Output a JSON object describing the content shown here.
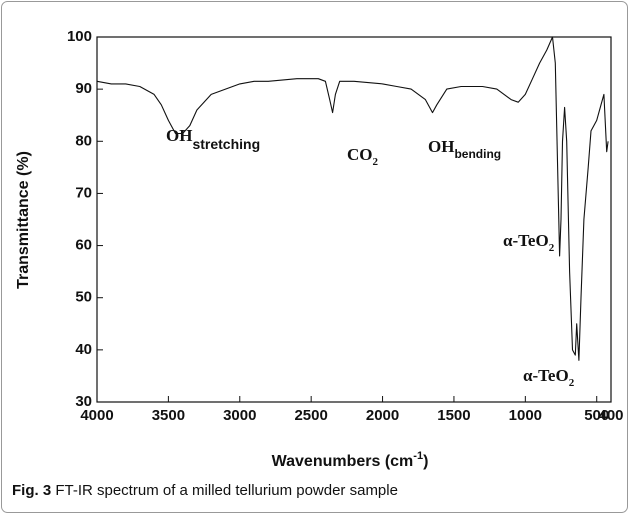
{
  "chart_data": {
    "type": "line",
    "xlabel": [
      "Wavenumbers (cm",
      "-1",
      ")"
    ],
    "ylabel": "Transmittance (%)",
    "caption": {
      "label": "Fig. 3",
      "text": " FT-IR spectrum of a milled tellurium powder sample"
    },
    "annotations": [
      {
        "text": "OH",
        "sub": "stretching"
      },
      {
        "text": "CO",
        "sub": "2"
      },
      {
        "text": "OH",
        "sub": "bending"
      },
      {
        "text": "α-TeO",
        "sub": "2"
      },
      {
        "text": "α-TeO",
        "sub": "2"
      }
    ],
    "color": "#111111",
    "x": [
      4000,
      3900,
      3800,
      3700,
      3600,
      3550,
      3500,
      3450,
      3400,
      3350,
      3300,
      3200,
      3100,
      3000,
      2900,
      2800,
      2600,
      2450,
      2400,
      2370,
      2350,
      2330,
      2300,
      2200,
      2000,
      1900,
      1800,
      1700,
      1650,
      1620,
      1550,
      1450,
      1300,
      1200,
      1100,
      1050,
      1000,
      950,
      900,
      850,
      810,
      790,
      770,
      760,
      750,
      740,
      725,
      710,
      690,
      670,
      650,
      640,
      625,
      610,
      590,
      560,
      540,
      500,
      470,
      450,
      430,
      420
    ],
    "values": [
      91.5,
      91,
      91,
      90.5,
      89,
      87,
      84,
      81.5,
      81.5,
      83,
      86,
      89,
      90,
      91,
      91.5,
      91.5,
      92,
      92,
      91.5,
      88,
      85.5,
      89,
      91.5,
      91.5,
      91,
      90.5,
      90,
      88,
      85.5,
      87,
      90,
      90.5,
      90.5,
      90,
      88,
      87.5,
      89,
      92,
      95,
      97.5,
      100,
      95,
      70,
      58,
      65,
      80,
      86.5,
      80,
      55,
      40,
      39,
      45,
      38,
      50,
      65,
      75,
      82,
      84,
      87,
      89,
      78,
      80
    ],
    "xlim": [
      4000,
      400
    ],
    "ylim": [
      30,
      100
    ],
    "xticks": [
      4000,
      3500,
      3000,
      2500,
      2000,
      1500,
      1000,
      500,
      400
    ],
    "yticks": [
      30,
      40,
      50,
      60,
      70,
      80,
      90,
      100
    ]
  }
}
